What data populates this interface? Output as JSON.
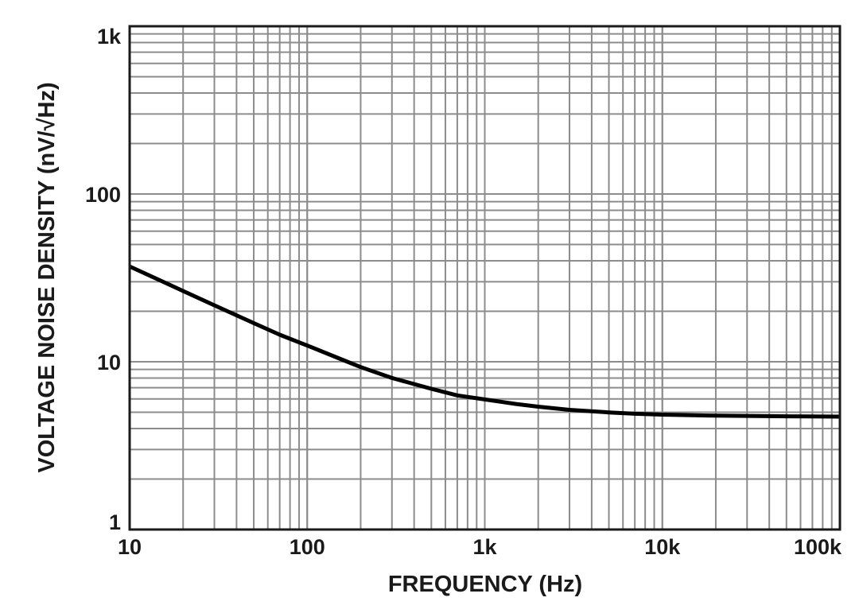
{
  "chart_data": {
    "type": "line",
    "title": "",
    "xlabel": "FREQUENCY (Hz)",
    "ylabel": "VOLTAGE NOISE DENSITY (nV/√Hz)",
    "xscale": "log",
    "yscale": "log",
    "xlim": [
      10,
      100000
    ],
    "ylim": [
      1,
      1000
    ],
    "grid": true,
    "x_ticks": [
      {
        "value": 10,
        "label": "10"
      },
      {
        "value": 100,
        "label": "100"
      },
      {
        "value": 1000,
        "label": "1k"
      },
      {
        "value": 10000,
        "label": "10k"
      },
      {
        "value": 100000,
        "label": "100k"
      }
    ],
    "y_ticks": [
      {
        "value": 1,
        "label": "1"
      },
      {
        "value": 10,
        "label": "10"
      },
      {
        "value": 100,
        "label": "100"
      },
      {
        "value": 1000,
        "label": "1k"
      }
    ],
    "series": [
      {
        "name": "Voltage Noise Density",
        "color": "#000000",
        "x": [
          10,
          15,
          20,
          30,
          50,
          70,
          100,
          150,
          200,
          300,
          500,
          700,
          1000,
          1500,
          2000,
          3000,
          5000,
          7000,
          10000,
          20000,
          50000,
          100000
        ],
        "y": [
          37.0,
          30.4,
          26.4,
          21.7,
          17.0,
          14.5,
          12.5,
          10.5,
          9.3,
          8.0,
          6.9,
          6.3,
          5.96,
          5.6,
          5.4,
          5.17,
          4.99,
          4.9,
          4.84,
          4.77,
          4.73,
          4.71
        ]
      }
    ]
  }
}
